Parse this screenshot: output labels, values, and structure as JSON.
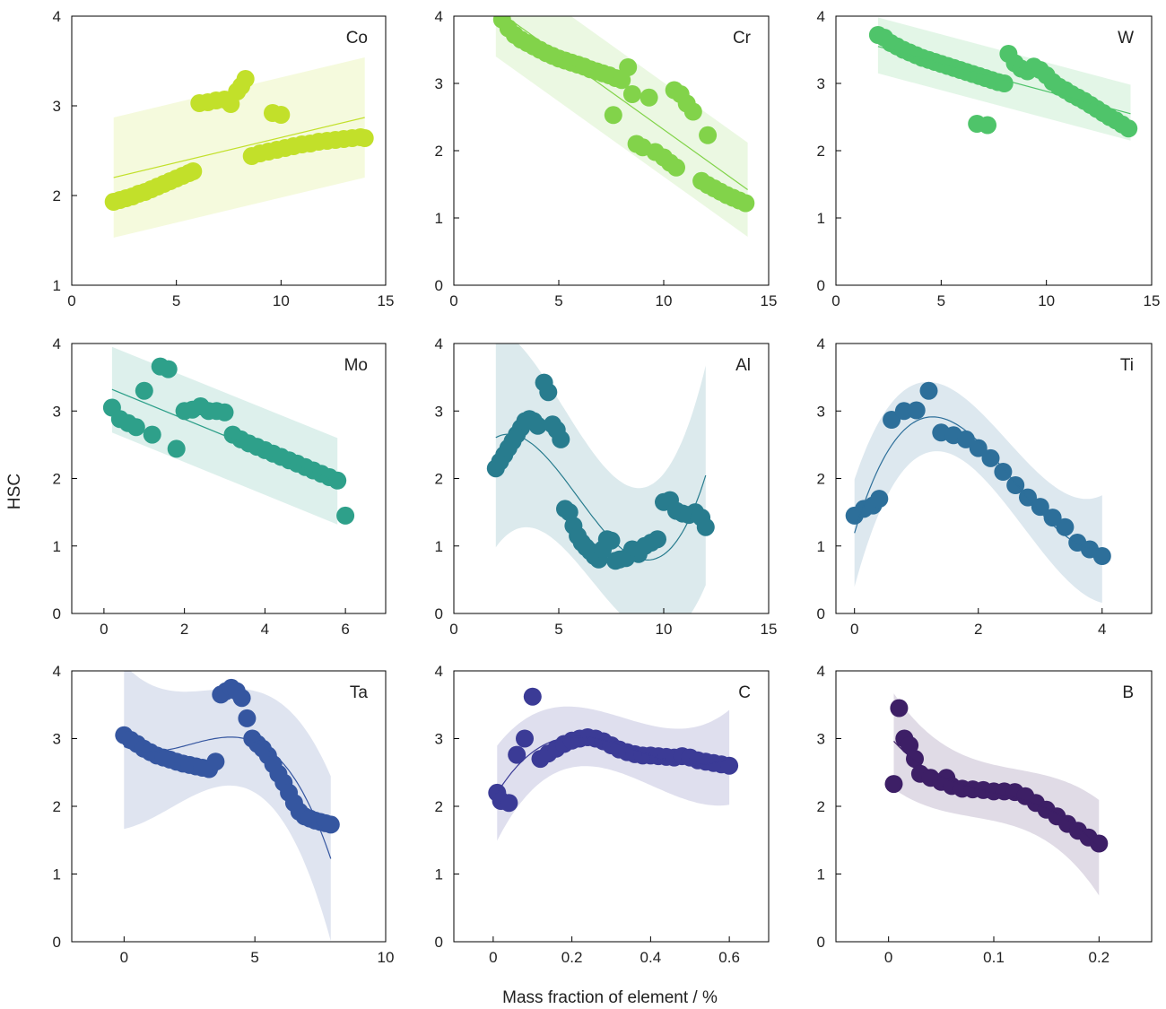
{
  "figure": {
    "ylabel": "HSC",
    "xlabel": "Mass fraction of element / %"
  },
  "chart_data": [
    {
      "type": "scatter",
      "label": "Co",
      "color": "#c2e02a",
      "fit": "linear",
      "xlim": [
        0,
        15
      ],
      "ylim": [
        1,
        4
      ],
      "xticks": [
        0,
        5,
        10,
        15
      ],
      "yticks": [
        1,
        2,
        3,
        4
      ],
      "x": [
        2.0,
        2.3,
        2.6,
        2.9,
        3.2,
        3.5,
        3.8,
        4.1,
        4.4,
        4.7,
        5.0,
        5.3,
        5.6,
        5.8,
        6.1,
        6.5,
        6.9,
        7.3,
        7.6,
        7.9,
        8.1,
        8.3,
        9.6,
        10.0,
        8.6,
        9.0,
        9.4,
        9.8,
        10.2,
        10.6,
        11.0,
        11.4,
        11.8,
        12.2,
        12.6,
        13.0,
        13.4,
        13.8,
        14.0
      ],
      "y": [
        1.93,
        1.95,
        1.97,
        1.99,
        2.02,
        2.04,
        2.07,
        2.1,
        2.13,
        2.16,
        2.19,
        2.22,
        2.25,
        2.27,
        3.03,
        3.04,
        3.06,
        3.07,
        3.02,
        3.16,
        3.22,
        3.3,
        2.92,
        2.9,
        2.44,
        2.47,
        2.49,
        2.51,
        2.53,
        2.55,
        2.57,
        2.58,
        2.6,
        2.61,
        2.62,
        2.63,
        2.64,
        2.65,
        2.64
      ],
      "fit_line": {
        "x": [
          2,
          14
        ],
        "y": [
          2.2,
          2.87
        ]
      },
      "band": {
        "x": [
          2,
          14
        ],
        "upper": [
          2.87,
          3.54
        ],
        "lower": [
          1.53,
          2.2
        ]
      }
    },
    {
      "type": "scatter",
      "label": "Cr",
      "color": "#82d34a",
      "fit": "linear",
      "xlim": [
        0,
        15
      ],
      "ylim": [
        0,
        4
      ],
      "xticks": [
        0,
        5,
        10,
        15
      ],
      "yticks": [
        0,
        1,
        2,
        3,
        4
      ],
      "x": [
        2.3,
        2.6,
        2.9,
        3.2,
        3.5,
        3.8,
        4.1,
        4.4,
        4.7,
        5.0,
        5.3,
        5.6,
        5.9,
        6.2,
        6.5,
        6.8,
        7.1,
        7.4,
        7.7,
        8.0,
        8.3,
        7.6,
        8.5,
        9.3,
        10.5,
        10.8,
        11.1,
        11.4,
        8.7,
        9.0,
        9.6,
        10.0,
        10.3,
        10.6,
        11.8,
        12.1,
        12.4,
        12.7,
        13.0,
        13.3,
        13.6,
        13.9,
        12.1
      ],
      "y": [
        3.95,
        3.82,
        3.72,
        3.65,
        3.6,
        3.55,
        3.5,
        3.45,
        3.41,
        3.37,
        3.34,
        3.31,
        3.28,
        3.25,
        3.21,
        3.18,
        3.15,
        3.12,
        3.08,
        3.05,
        3.24,
        2.53,
        2.84,
        2.79,
        2.9,
        2.84,
        2.7,
        2.58,
        2.1,
        2.05,
        1.98,
        1.9,
        1.82,
        1.75,
        1.55,
        1.49,
        1.44,
        1.39,
        1.34,
        1.3,
        1.26,
        1.22,
        2.23
      ],
      "fit_line": {
        "x": [
          2,
          14
        ],
        "y": [
          4.1,
          1.42
        ]
      },
      "band": {
        "x": [
          2,
          14
        ],
        "upper": [
          4.8,
          2.12
        ],
        "lower": [
          3.4,
          0.72
        ]
      }
    },
    {
      "type": "scatter",
      "label": "W",
      "color": "#4fc46a",
      "fit": "linear",
      "xlim": [
        0,
        15
      ],
      "ylim": [
        0,
        4
      ],
      "xticks": [
        0,
        5,
        10,
        15
      ],
      "yticks": [
        0,
        1,
        2,
        3,
        4
      ],
      "x": [
        2.0,
        2.3,
        2.6,
        2.9,
        3.2,
        3.5,
        3.8,
        4.1,
        4.4,
        4.7,
        5.0,
        5.3,
        5.6,
        5.9,
        6.2,
        6.5,
        6.8,
        7.1,
        7.4,
        7.7,
        8.0,
        6.7,
        7.2,
        8.2,
        8.5,
        8.8,
        9.1,
        9.4,
        9.7,
        10.0,
        10.3,
        10.6,
        10.9,
        11.2,
        11.5,
        11.8,
        12.1,
        12.4,
        12.7,
        13.0,
        13.3,
        13.6,
        13.9
      ],
      "y": [
        3.72,
        3.68,
        3.6,
        3.55,
        3.5,
        3.46,
        3.42,
        3.38,
        3.35,
        3.32,
        3.29,
        3.26,
        3.23,
        3.2,
        3.17,
        3.14,
        3.11,
        3.08,
        3.05,
        3.02,
        3.0,
        2.4,
        2.38,
        3.44,
        3.3,
        3.22,
        3.18,
        3.25,
        3.2,
        3.12,
        3.02,
        2.95,
        2.9,
        2.84,
        2.79,
        2.74,
        2.68,
        2.62,
        2.56,
        2.5,
        2.45,
        2.39,
        2.33
      ],
      "fit_line": {
        "x": [
          2,
          14
        ],
        "y": [
          3.55,
          2.55
        ]
      },
      "band": {
        "x": [
          2,
          14
        ],
        "upper": [
          3.98,
          2.98
        ],
        "lower": [
          3.15,
          2.15
        ]
      }
    },
    {
      "type": "scatter",
      "label": "Mo",
      "color": "#2ea08a",
      "fit": "linear",
      "xlim": [
        -0.8,
        7
      ],
      "ylim": [
        0,
        4
      ],
      "xticks": [
        0,
        2,
        4,
        6
      ],
      "yticks": [
        0,
        1,
        2,
        3,
        4
      ],
      "x": [
        0.2,
        0.4,
        0.6,
        0.8,
        1.0,
        1.2,
        1.4,
        1.6,
        1.8,
        2.0,
        2.2,
        2.4,
        2.6,
        2.8,
        3.0,
        3.2,
        3.4,
        3.6,
        3.8,
        4.0,
        4.2,
        4.4,
        4.6,
        4.8,
        5.0,
        5.2,
        5.4,
        5.6,
        5.8,
        6.0
      ],
      "y": [
        3.05,
        2.88,
        2.82,
        2.76,
        3.3,
        2.65,
        3.66,
        3.62,
        2.44,
        3.0,
        3.02,
        3.07,
        3.0,
        3.0,
        2.98,
        2.65,
        2.58,
        2.52,
        2.47,
        2.42,
        2.37,
        2.32,
        2.27,
        2.22,
        2.17,
        2.12,
        2.07,
        2.02,
        1.97,
        1.45
      ],
      "fit_line": {
        "x": [
          0.2,
          5.8
        ],
        "y": [
          3.32,
          1.95
        ]
      },
      "band": {
        "x": [
          0.2,
          5.8
        ],
        "upper": [
          3.95,
          2.6
        ],
        "lower": [
          2.68,
          1.32
        ]
      }
    },
    {
      "type": "scatter",
      "label": "Al",
      "color": "#287c8e",
      "fit": "polynomial",
      "xlim": [
        0,
        15
      ],
      "ylim": [
        0,
        4
      ],
      "xticks": [
        0,
        5,
        10,
        15
      ],
      "yticks": [
        0,
        1,
        2,
        3,
        4
      ],
      "x": [
        2.0,
        2.2,
        2.4,
        2.6,
        2.8,
        3.0,
        3.2,
        3.4,
        3.6,
        3.8,
        4.0,
        4.3,
        4.5,
        4.7,
        4.9,
        5.1,
        5.3,
        5.5,
        5.7,
        5.9,
        6.1,
        6.3,
        6.5,
        6.7,
        6.9,
        7.1,
        7.3,
        7.5,
        7.7,
        7.9,
        8.2,
        8.5,
        8.8,
        9.1,
        9.4,
        9.7,
        10.0,
        10.3,
        10.6,
        10.9,
        11.2,
        11.5,
        11.8,
        12.0
      ],
      "y": [
        2.15,
        2.25,
        2.35,
        2.45,
        2.55,
        2.65,
        2.75,
        2.85,
        2.88,
        2.85,
        2.78,
        3.42,
        3.28,
        2.8,
        2.72,
        2.58,
        1.55,
        1.5,
        1.3,
        1.15,
        1.05,
        0.98,
        0.92,
        0.85,
        0.8,
        0.95,
        1.1,
        1.08,
        0.78,
        0.8,
        0.82,
        0.95,
        0.88,
        1.0,
        1.05,
        1.1,
        1.65,
        1.68,
        1.52,
        1.48,
        1.46,
        1.5,
        1.42,
        1.28
      ]
    },
    {
      "type": "scatter",
      "label": "Ti",
      "color": "#2d6f9a",
      "fit": "polynomial",
      "xlim": [
        -0.3,
        4.8
      ],
      "ylim": [
        0,
        4
      ],
      "xticks": [
        0,
        2,
        4
      ],
      "yticks": [
        0,
        1,
        2,
        3,
        4
      ],
      "x": [
        0.0,
        0.15,
        0.3,
        0.4,
        0.6,
        0.8,
        1.0,
        1.2,
        1.4,
        1.6,
        1.8,
        2.0,
        2.2,
        2.4,
        2.6,
        2.8,
        3.0,
        3.2,
        3.4,
        3.6,
        3.8,
        4.0
      ],
      "y": [
        1.45,
        1.55,
        1.6,
        1.7,
        2.87,
        3.0,
        3.01,
        3.3,
        2.68,
        2.64,
        2.58,
        2.45,
        2.3,
        2.1,
        1.9,
        1.72,
        1.58,
        1.42,
        1.28,
        1.05,
        0.95,
        0.85
      ]
    },
    {
      "type": "scatter",
      "label": "Ta",
      "color": "#3556a0",
      "fit": "polynomial",
      "xlim": [
        -2,
        10
      ],
      "ylim": [
        0,
        4
      ],
      "xticks": [
        0,
        5,
        10
      ],
      "yticks": [
        0,
        1,
        2,
        3,
        4
      ],
      "x": [
        0.0,
        0.25,
        0.5,
        0.75,
        1.0,
        1.25,
        1.5,
        1.75,
        2.0,
        2.25,
        2.5,
        2.75,
        3.0,
        3.25,
        3.5,
        3.7,
        3.9,
        4.1,
        4.3,
        4.5,
        4.7,
        4.9,
        5.1,
        5.3,
        5.5,
        5.7,
        5.9,
        6.1,
        6.3,
        6.5,
        6.7,
        6.9,
        7.1,
        7.3,
        7.5,
        7.7,
        7.9
      ],
      "y": [
        3.05,
        2.98,
        2.92,
        2.85,
        2.8,
        2.75,
        2.72,
        2.69,
        2.66,
        2.63,
        2.61,
        2.59,
        2.57,
        2.55,
        2.66,
        3.65,
        3.7,
        3.75,
        3.7,
        3.6,
        3.3,
        3.0,
        2.92,
        2.85,
        2.75,
        2.62,
        2.48,
        2.35,
        2.2,
        2.05,
        1.92,
        1.85,
        1.82,
        1.79,
        1.77,
        1.75,
        1.73
      ]
    },
    {
      "type": "scatter",
      "label": "C",
      "color": "#3b3b96",
      "fit": "polynomial",
      "xlim": [
        -0.1,
        0.7
      ],
      "ylim": [
        0,
        4
      ],
      "xticks": [
        0.0,
        0.2,
        0.4,
        0.6
      ],
      "yticks": [
        0,
        1,
        2,
        3,
        4
      ],
      "x": [
        0.01,
        0.02,
        0.04,
        0.06,
        0.08,
        0.1,
        0.12,
        0.14,
        0.16,
        0.18,
        0.2,
        0.22,
        0.24,
        0.26,
        0.28,
        0.3,
        0.32,
        0.34,
        0.36,
        0.38,
        0.4,
        0.42,
        0.44,
        0.46,
        0.48,
        0.5,
        0.52,
        0.54,
        0.56,
        0.58,
        0.6
      ],
      "y": [
        2.2,
        2.08,
        2.05,
        2.76,
        3.0,
        3.62,
        2.7,
        2.78,
        2.85,
        2.92,
        2.97,
        3.0,
        3.02,
        3.0,
        2.96,
        2.9,
        2.84,
        2.8,
        2.77,
        2.75,
        2.75,
        2.74,
        2.73,
        2.72,
        2.74,
        2.72,
        2.68,
        2.66,
        2.64,
        2.62,
        2.6
      ]
    },
    {
      "type": "scatter",
      "label": "B",
      "color": "#3d1f66",
      "fit": "polynomial",
      "xlim": [
        -0.05,
        0.25
      ],
      "ylim": [
        0,
        4
      ],
      "xticks": [
        0.0,
        0.1,
        0.2
      ],
      "yticks": [
        0,
        1,
        2,
        3,
        4
      ],
      "x": [
        0.005,
        0.01,
        0.015,
        0.02,
        0.025,
        0.03,
        0.04,
        0.05,
        0.055,
        0.06,
        0.07,
        0.08,
        0.09,
        0.1,
        0.11,
        0.12,
        0.13,
        0.14,
        0.15,
        0.16,
        0.17,
        0.18,
        0.19,
        0.2
      ],
      "y": [
        2.33,
        3.45,
        3.0,
        2.9,
        2.7,
        2.48,
        2.42,
        2.36,
        2.42,
        2.3,
        2.26,
        2.25,
        2.24,
        2.22,
        2.22,
        2.21,
        2.15,
        2.05,
        1.95,
        1.85,
        1.74,
        1.64,
        1.54,
        1.45
      ]
    }
  ]
}
